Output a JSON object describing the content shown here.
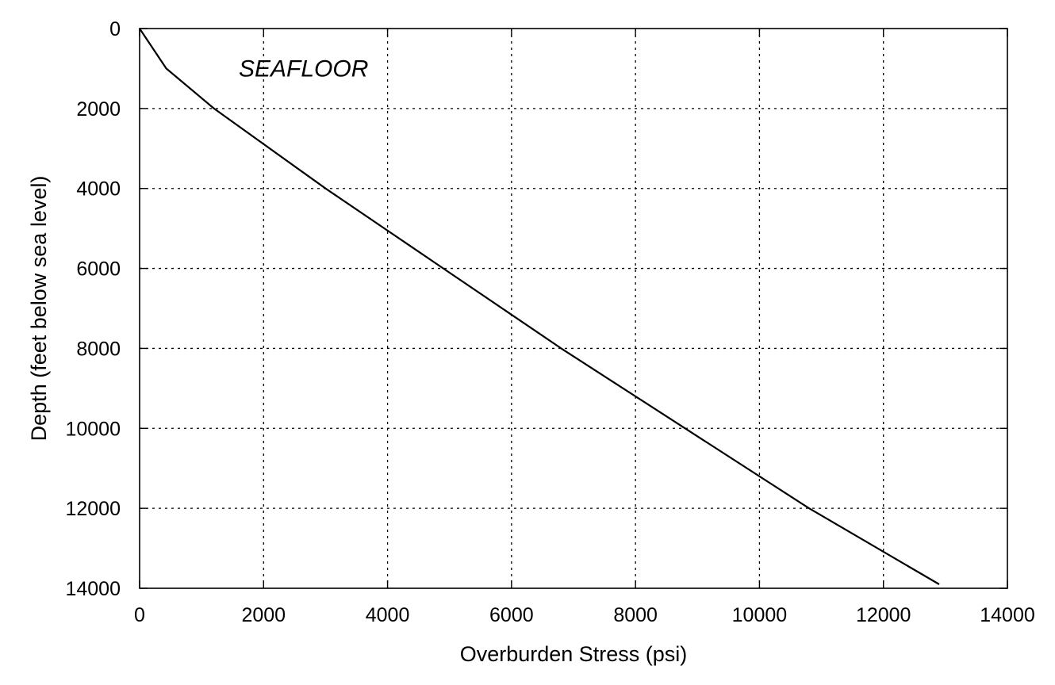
{
  "chart_data": {
    "type": "line",
    "xlabel": "Overburden Stress (psi)",
    "ylabel": "Depth (feet below sea level)",
    "xlim": [
      0,
      14000
    ],
    "ylim": [
      0,
      14000
    ],
    "y_inverted": true,
    "grid": true,
    "x_ticks": [
      "0",
      "2000",
      "4000",
      "6000",
      "8000",
      "10000",
      "12000",
      "14000"
    ],
    "y_ticks": [
      "0",
      "2000",
      "4000",
      "6000",
      "8000",
      "10000",
      "12000",
      "14000"
    ],
    "annotation": {
      "text": "SEAFLOOR",
      "x": 1600,
      "y": 1200
    },
    "series": [
      {
        "points": [
          [
            0,
            0
          ],
          [
            430,
            1000
          ],
          [
            1200,
            2000
          ],
          [
            3000,
            4000
          ],
          [
            4900,
            6000
          ],
          [
            6800,
            8000
          ],
          [
            8800,
            10000
          ],
          [
            10800,
            12000
          ],
          [
            12900,
            13900
          ]
        ]
      }
    ]
  }
}
